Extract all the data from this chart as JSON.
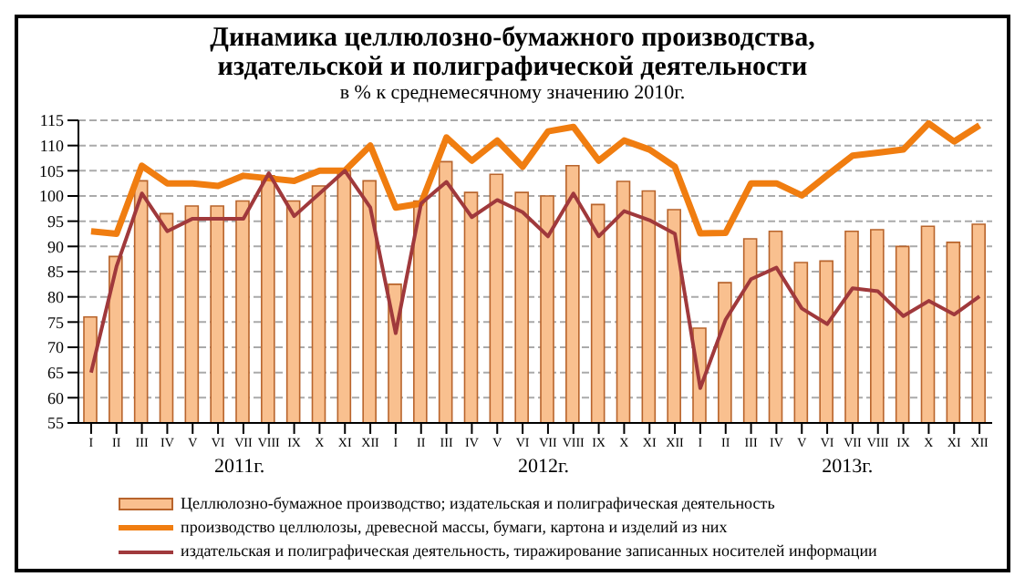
{
  "chart_data": {
    "type": "bar",
    "title": "Динамика целлюлозно-бумажного производства,\nиздательской и полиграфической деятельности",
    "subtitle": "в % к среднемесячному значению 2010г.",
    "categories": [
      "I",
      "II",
      "III",
      "IV",
      "V",
      "VI",
      "VII",
      "VIII",
      "IX",
      "X",
      "XI",
      "XII",
      "I",
      "II",
      "III",
      "IV",
      "V",
      "VI",
      "VII",
      "VIII",
      "IX",
      "X",
      "XI",
      "XII",
      "I",
      "II",
      "III",
      "IV",
      "V",
      "VI",
      "VII",
      "VIII",
      "IX",
      "X",
      "XI",
      "XII"
    ],
    "annotations": [
      "2011г.",
      "2012г.",
      "2013г."
    ],
    "series": [
      {
        "name": "Целлюлозно-бумажное производство; издательская и полиграфическая деятельность",
        "color": "#f9c08f",
        "values": [
          76,
          88,
          103,
          96.5,
          98,
          98,
          99,
          104,
          99,
          102,
          105,
          103,
          82.5,
          99,
          106.8,
          100.7,
          104.3,
          100.7,
          100,
          106,
          98.3,
          102.9,
          101,
          97.3,
          73.8,
          82.8,
          91.5,
          93,
          86.8,
          87.1,
          93,
          93.3,
          90,
          94,
          90.8,
          94.4
        ]
      },
      {
        "name": "производство целлюлозы, древесной массы, бумаги, картона и изделий из них",
        "type": "line",
        "color": "#f07d10",
        "values": [
          93,
          92.5,
          106,
          102.5,
          102.5,
          102,
          104,
          103.5,
          103,
          105,
          105,
          110,
          97.7,
          98.5,
          111.6,
          107,
          111,
          105.8,
          112.8,
          113.7,
          107,
          111,
          109.2,
          105.8,
          92.6,
          92.7,
          102.5,
          102.5,
          100.1,
          104.1,
          108,
          108.6,
          109.2,
          114.4,
          110.8,
          114
        ]
      },
      {
        "name": "издательская и полиграфическая деятельность, тиражирование записанных  носителей информации",
        "type": "line",
        "color": "#a0393c",
        "values": [
          65,
          86,
          100.5,
          93,
          95.5,
          95.5,
          95.5,
          104.5,
          96,
          100.5,
          105,
          97.7,
          72.8,
          98.5,
          102.8,
          95.8,
          99.2,
          96.8,
          92,
          100.5,
          92,
          97,
          95.2,
          92.5,
          61.9,
          75.5,
          83.5,
          85.8,
          77.7,
          74.6,
          81.7,
          81.1,
          76.2,
          79.2,
          76.5,
          80.1
        ]
      }
    ],
    "ylim": [
      55,
      115
    ],
    "yticks": [
      55,
      60,
      65,
      70,
      75,
      80,
      85,
      90,
      95,
      100,
      105,
      110,
      115
    ],
    "grid": "y",
    "legend": "bottom",
    "marker": "none"
  }
}
